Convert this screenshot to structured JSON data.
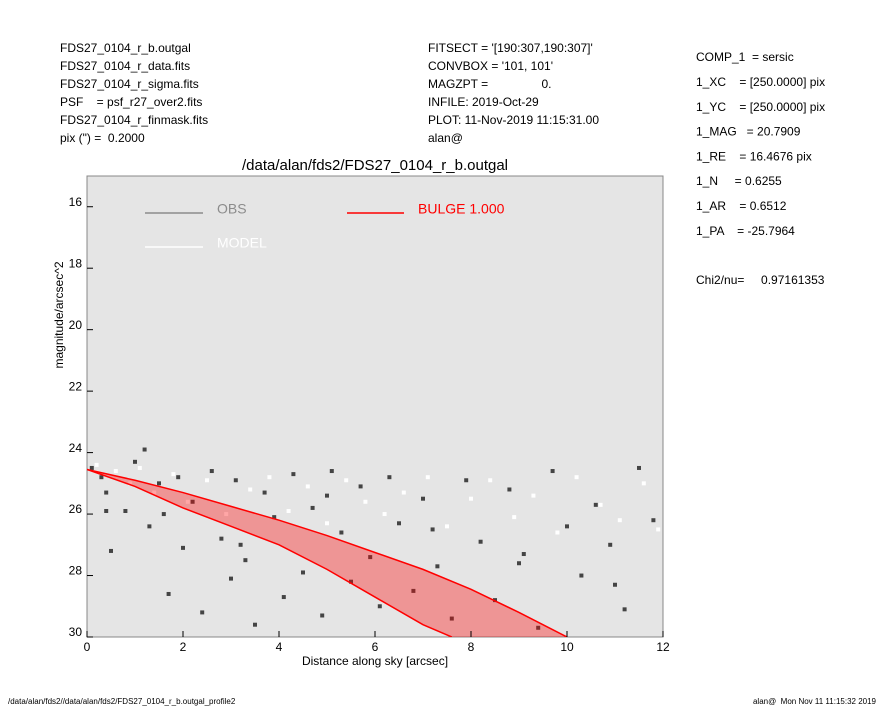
{
  "header": {
    "left": [
      "FDS27_0104_r_b.outgal",
      "FDS27_0104_r_data.fits",
      "FDS27_0104_r_sigma.fits",
      "PSF    = psf_r27_over2.fits",
      "FDS27_0104_r_finmask.fits",
      "pix (\") =  0.2000"
    ],
    "middle": [
      "FITSECT = '[190:307,190:307]'",
      "CONVBOX = '101, 101'",
      "MAGZPT =                0.",
      "INFILE: 2019-Oct-29",
      "PLOT: 11-Nov-2019 11:15:31.00",
      "alan@"
    ],
    "right": [
      "COMP_1  = sersic",
      "1_XC    = [250.0000] pix",
      "1_YC    = [250.0000] pix",
      "1_MAG   = 20.7909",
      "1_RE    = 16.4676 pix",
      "1_N     = 0.6255",
      "1_AR    = 0.6512",
      "1_PA    = -25.7964"
    ],
    "chi2": "Chi2/nu=     0.97161353"
  },
  "footer": {
    "left": "/data/alan/fds2//data/alan/fds2/FDS27_0104_r_b.outgal_profile2",
    "right": "alan@  Mon Nov 11 11:15:32 2019"
  },
  "chart_data": {
    "type": "scatter",
    "title": "/data/alan/fds2/FDS27_0104_r_b.outgal",
    "xlabel": "Distance along sky [arcsec]",
    "ylabel": "magnitude/arcsec^2",
    "xlim": [
      0,
      12
    ],
    "ylim": [
      30,
      15
    ],
    "xticks": [
      0,
      2,
      4,
      6,
      8,
      10,
      12
    ],
    "yticks": [
      16,
      18,
      20,
      22,
      24,
      26,
      28,
      30
    ],
    "background": "#e5e5e5",
    "series": [
      {
        "name": "OBS",
        "color": "#444444",
        "legend_color": "#8c8c8c",
        "x": [
          0.1,
          0.3,
          0.5,
          0.4,
          0.8,
          1.0,
          1.2,
          1.3,
          1.5,
          1.7,
          1.9,
          2.0,
          2.2,
          2.4,
          2.6,
          2.8,
          3.0,
          3.1,
          3.3,
          3.5,
          3.7,
          3.9,
          4.1,
          4.3,
          4.5,
          4.7,
          4.9,
          5.1,
          5.3,
          5.5,
          5.7,
          5.9,
          6.1,
          6.3,
          6.5,
          6.8,
          7.0,
          7.3,
          7.6,
          7.9,
          8.2,
          8.5,
          8.8,
          9.1,
          9.4,
          9.7,
          10.0,
          10.3,
          10.6,
          10.9,
          11.2,
          11.5,
          11.8,
          0.4,
          1.6,
          3.2,
          5.0,
          7.2,
          9.0,
          11.0
        ],
        "values": [
          24.5,
          24.8,
          27.2,
          25.3,
          25.9,
          24.3,
          23.9,
          26.4,
          25.0,
          28.6,
          24.8,
          27.1,
          25.6,
          29.2,
          24.6,
          26.8,
          28.1,
          24.9,
          27.5,
          29.6,
          25.3,
          26.1,
          28.7,
          24.7,
          27.9,
          25.8,
          29.3,
          24.6,
          26.6,
          28.2,
          25.1,
          27.4,
          29.0,
          24.8,
          26.3,
          28.5,
          25.5,
          27.7,
          29.4,
          24.9,
          26.9,
          28.8,
          25.2,
          27.3,
          29.7,
          24.6,
          26.4,
          28.0,
          25.7,
          27.0,
          29.1,
          24.5,
          26.2,
          25.9,
          26.0,
          27.0,
          25.4,
          26.5,
          27.6,
          28.3
        ]
      },
      {
        "name": "MODEL",
        "color": "#ffffff",
        "legend_color": "#ffffff",
        "x": [
          0.2,
          0.6,
          0.9,
          1.1,
          1.4,
          1.8,
          2.1,
          2.5,
          2.9,
          3.4,
          3.8,
          4.2,
          4.6,
          5.0,
          5.4,
          5.8,
          6.2,
          6.6,
          7.1,
          7.5,
          8.0,
          8.4,
          8.9,
          9.3,
          9.8,
          10.2,
          10.7,
          11.1,
          11.6,
          11.9
        ],
        "values": [
          24.4,
          24.6,
          25.0,
          24.5,
          25.3,
          24.7,
          25.6,
          24.9,
          26.0,
          25.2,
          24.8,
          25.9,
          25.1,
          26.3,
          24.9,
          25.6,
          26.0,
          25.3,
          24.8,
          26.4,
          25.5,
          24.9,
          26.1,
          25.4,
          26.6,
          24.8,
          25.7,
          26.2,
          25.0,
          26.5
        ]
      }
    ],
    "band": {
      "name": "BULGE 1.000",
      "color": "#ff0000",
      "x": [
        0,
        1,
        2,
        3,
        4,
        5,
        6,
        7,
        8,
        9,
        10
      ],
      "values": [
        24.55,
        24.9,
        25.3,
        25.75,
        26.2,
        26.7,
        27.25,
        27.8,
        28.45,
        29.2,
        30
      ],
      "x_lower": [
        0,
        1,
        2,
        3,
        4,
        5,
        6,
        7,
        7.6
      ],
      "lower": [
        24.55,
        25.1,
        25.8,
        26.4,
        27.0,
        27.8,
        28.7,
        29.6,
        30
      ]
    }
  }
}
